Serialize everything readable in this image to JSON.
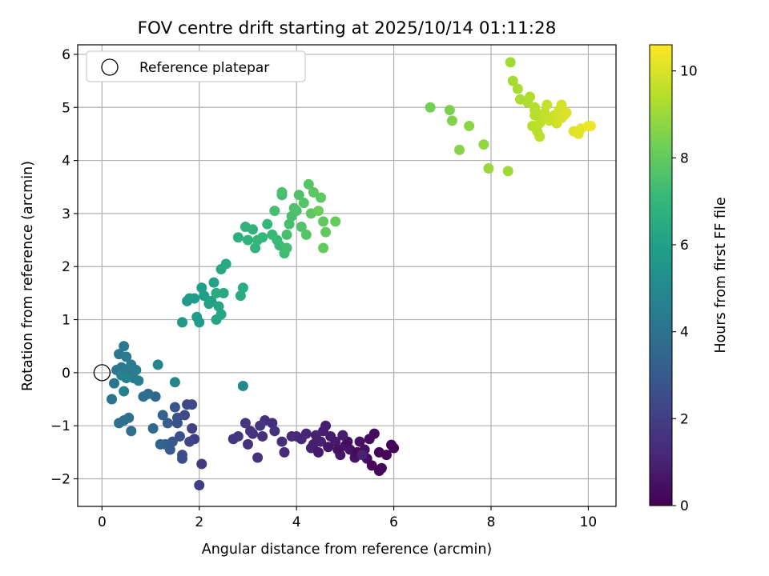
{
  "chart_data": {
    "type": "scatter",
    "title": "FOV centre drift starting at 2025/10/14 01:11:28",
    "xlabel": "Angular distance from reference (arcmin)",
    "ylabel": "Rotation from reference (arcmin)",
    "xlim": [
      -0.5,
      10.57
    ],
    "ylim": [
      -2.52,
      6.18
    ],
    "xticks": [
      "0",
      "2",
      "4",
      "6",
      "8",
      "10"
    ],
    "yticks": [
      "−2",
      "−1",
      "0",
      "1",
      "2",
      "3",
      "4",
      "5",
      "6"
    ],
    "grid": true,
    "legend": {
      "position": "top-left",
      "label": "Reference platepar",
      "marker": "open-circle"
    },
    "reference_point": {
      "x": 0,
      "y": 0
    },
    "colorbar": {
      "label": "Hours from first FF file",
      "range": [
        0,
        10.6
      ],
      "ticks": [
        "0",
        "2",
        "4",
        "6",
        "8",
        "10"
      ],
      "colormap": "viridis"
    },
    "colormap_stops": [
      "#440154",
      "#482878",
      "#3e4989",
      "#31688e",
      "#26828e",
      "#1f9e89",
      "#35b779",
      "#6ece58",
      "#b5de2b",
      "#fde725"
    ],
    "points": [
      [
        6.0,
        -1.42,
        0.05
      ],
      [
        5.95,
        -1.36,
        0.1
      ],
      [
        5.85,
        -1.55,
        0.15
      ],
      [
        5.75,
        -1.8,
        0.2
      ],
      [
        5.7,
        -1.85,
        0.25
      ],
      [
        5.6,
        -1.15,
        0.3
      ],
      [
        5.5,
        -1.25,
        0.35
      ],
      [
        5.45,
        -1.62,
        0.4
      ],
      [
        5.4,
        -1.45,
        0.45
      ],
      [
        5.3,
        -1.3,
        0.5
      ],
      [
        5.2,
        -1.6,
        0.55
      ],
      [
        5.1,
        -1.45,
        0.6
      ],
      [
        5.0,
        -1.38,
        0.65
      ],
      [
        4.9,
        -1.55,
        0.7
      ],
      [
        4.8,
        -1.3,
        0.75
      ],
      [
        4.7,
        -1.2,
        0.8
      ],
      [
        4.6,
        -1.0,
        0.85
      ],
      [
        4.55,
        -1.1,
        0.9
      ],
      [
        4.5,
        -1.3,
        0.95
      ],
      [
        4.4,
        -1.18,
        1.0
      ],
      [
        4.3,
        -1.42,
        1.05
      ],
      [
        4.2,
        -1.15,
        1.1
      ],
      [
        4.1,
        -1.25,
        1.15
      ],
      [
        4.0,
        -1.2,
        1.2
      ],
      [
        3.9,
        -1.2,
        1.25
      ],
      [
        3.75,
        -1.5,
        1.3
      ],
      [
        3.7,
        -1.3,
        1.35
      ],
      [
        3.5,
        -0.95,
        1.4
      ],
      [
        3.3,
        -1.2,
        1.45
      ],
      [
        3.2,
        -1.6,
        1.5
      ],
      [
        3.1,
        -1.15,
        1.55
      ],
      [
        3.0,
        -1.35,
        1.6
      ],
      [
        2.95,
        -0.95,
        1.65
      ],
      [
        2.8,
        -1.2,
        1.7
      ],
      [
        2.7,
        -1.25,
        1.75
      ],
      [
        5.7,
        -1.5,
        0.12
      ],
      [
        5.55,
        -1.75,
        0.22
      ],
      [
        5.25,
        -1.5,
        0.32
      ],
      [
        5.05,
        -1.3,
        0.42
      ],
      [
        4.85,
        -1.45,
        0.52
      ],
      [
        4.65,
        -1.4,
        0.62
      ],
      [
        4.45,
        -1.5,
        0.72
      ],
      [
        4.95,
        -1.18,
        0.82
      ],
      [
        4.35,
        -1.35,
        0.92
      ],
      [
        5.35,
        -1.55,
        1.02
      ],
      [
        3.35,
        -0.9,
        1.5
      ],
      [
        3.55,
        -1.1,
        1.58
      ],
      [
        3.05,
        -1.1,
        1.62
      ],
      [
        3.25,
        -1.0,
        1.68
      ],
      [
        2.05,
        -1.72,
        1.8
      ],
      [
        2.0,
        -2.12,
        1.9
      ],
      [
        1.9,
        -1.25,
        2.0
      ],
      [
        1.85,
        -1.05,
        2.1
      ],
      [
        1.8,
        -1.3,
        2.2
      ],
      [
        1.75,
        -0.6,
        2.3
      ],
      [
        1.7,
        -0.8,
        2.4
      ],
      [
        1.65,
        -1.55,
        2.5
      ],
      [
        1.6,
        -1.2,
        2.6
      ],
      [
        1.55,
        -0.85,
        2.7
      ],
      [
        1.5,
        -0.65,
        2.8
      ],
      [
        1.45,
        -1.3,
        2.9
      ],
      [
        1.4,
        -1.45,
        3.0
      ],
      [
        1.35,
        -0.95,
        3.1
      ],
      [
        1.3,
        -1.35,
        3.2
      ],
      [
        1.25,
        -0.8,
        3.3
      ],
      [
        1.2,
        -1.35,
        3.4
      ],
      [
        1.1,
        -0.45,
        3.5
      ],
      [
        1.05,
        -1.05,
        3.6
      ],
      [
        0.95,
        -0.4,
        3.7
      ],
      [
        0.85,
        -0.45,
        3.8
      ],
      [
        1.65,
        -1.62,
        2.55
      ],
      [
        1.85,
        -0.6,
        2.35
      ],
      [
        1.55,
        -0.95,
        2.65
      ],
      [
        0.6,
        -1.1,
        3.8
      ],
      [
        0.55,
        -0.85,
        3.85
      ],
      [
        0.45,
        -0.9,
        3.9
      ],
      [
        0.35,
        -0.95,
        3.95
      ],
      [
        0.2,
        -0.5,
        4.0
      ],
      [
        0.25,
        -0.2,
        4.05
      ],
      [
        0.3,
        0.05,
        4.1
      ],
      [
        0.35,
        0.35,
        4.15
      ],
      [
        0.4,
        0.1,
        4.2
      ],
      [
        0.45,
        0.5,
        4.25
      ],
      [
        0.5,
        0.3,
        4.3
      ],
      [
        0.55,
        0.05,
        4.35
      ],
      [
        0.6,
        0.15,
        4.4
      ],
      [
        0.65,
        -0.1,
        4.45
      ],
      [
        0.7,
        0.05,
        4.5
      ],
      [
        0.75,
        -0.15,
        4.55
      ],
      [
        0.45,
        -0.35,
        4.6
      ],
      [
        0.5,
        -0.1,
        4.65
      ],
      [
        0.4,
        -0.05,
        4.7
      ],
      [
        1.15,
        0.15,
        4.8
      ],
      [
        1.5,
        -0.18,
        4.9
      ],
      [
        2.9,
        -0.25,
        5.0
      ],
      [
        1.65,
        0.95,
        5.6
      ],
      [
        1.75,
        1.35,
        5.65
      ],
      [
        1.8,
        1.4,
        5.7
      ],
      [
        1.9,
        1.4,
        5.75
      ],
      [
        1.95,
        1.05,
        5.8
      ],
      [
        2.0,
        0.95,
        5.85
      ],
      [
        2.05,
        1.6,
        5.9
      ],
      [
        2.1,
        1.45,
        5.95
      ],
      [
        2.2,
        1.3,
        6.0
      ],
      [
        2.25,
        1.35,
        6.05
      ],
      [
        2.3,
        1.7,
        6.1
      ],
      [
        2.35,
        1.0,
        6.15
      ],
      [
        2.4,
        1.25,
        6.2
      ],
      [
        2.45,
        1.1,
        6.25
      ],
      [
        2.5,
        1.5,
        6.3
      ],
      [
        2.55,
        2.05,
        6.35
      ],
      [
        2.45,
        1.95,
        6.4
      ],
      [
        2.85,
        1.45,
        6.45
      ],
      [
        2.9,
        1.6,
        6.5
      ],
      [
        2.35,
        1.5,
        6.55
      ],
      [
        2.8,
        2.55,
        6.7
      ],
      [
        2.95,
        2.75,
        6.75
      ],
      [
        3.0,
        2.5,
        6.8
      ],
      [
        3.1,
        2.7,
        6.85
      ],
      [
        3.15,
        2.35,
        6.9
      ],
      [
        3.2,
        2.5,
        6.95
      ],
      [
        3.3,
        2.55,
        7.0
      ],
      [
        3.4,
        2.8,
        7.05
      ],
      [
        3.5,
        2.6,
        7.1
      ],
      [
        3.6,
        2.5,
        7.15
      ],
      [
        3.65,
        2.4,
        7.2
      ],
      [
        3.7,
        3.35,
        7.25
      ],
      [
        3.75,
        2.25,
        7.3
      ],
      [
        3.8,
        2.35,
        7.35
      ],
      [
        3.8,
        2.6,
        7.4
      ],
      [
        3.85,
        2.8,
        7.45
      ],
      [
        3.9,
        2.95,
        7.5
      ],
      [
        4.0,
        3.05,
        7.55
      ],
      [
        4.05,
        3.35,
        7.6
      ],
      [
        4.1,
        2.75,
        7.65
      ],
      [
        4.15,
        3.2,
        7.7
      ],
      [
        4.2,
        2.6,
        7.75
      ],
      [
        4.25,
        3.55,
        7.8
      ],
      [
        4.3,
        3.0,
        7.85
      ],
      [
        4.5,
        3.3,
        7.9
      ],
      [
        4.55,
        2.85,
        7.95
      ],
      [
        4.6,
        2.65,
        8.0
      ],
      [
        4.55,
        2.35,
        8.05
      ],
      [
        4.8,
        2.85,
        8.1
      ],
      [
        4.45,
        3.05,
        8.15
      ],
      [
        3.55,
        3.05,
        7.4
      ],
      [
        3.7,
        3.4,
        7.5
      ],
      [
        3.95,
        3.1,
        7.6
      ],
      [
        4.35,
        3.4,
        7.85
      ],
      [
        6.75,
        5.0,
        8.3
      ],
      [
        7.15,
        4.95,
        8.45
      ],
      [
        7.2,
        4.75,
        8.55
      ],
      [
        7.35,
        4.2,
        8.65
      ],
      [
        7.55,
        4.65,
        8.75
      ],
      [
        7.85,
        4.3,
        8.85
      ],
      [
        7.95,
        3.85,
        8.95
      ],
      [
        8.35,
        3.8,
        9.05
      ],
      [
        8.4,
        5.85,
        9.1
      ],
      [
        8.45,
        5.5,
        9.15
      ],
      [
        8.55,
        5.35,
        9.2
      ],
      [
        8.6,
        5.15,
        9.25
      ],
      [
        8.75,
        5.1,
        9.3
      ],
      [
        8.8,
        5.2,
        9.35
      ],
      [
        8.85,
        4.65,
        9.4
      ],
      [
        8.9,
        4.95,
        9.45
      ],
      [
        8.95,
        4.55,
        9.5
      ],
      [
        9.0,
        4.45,
        9.55
      ],
      [
        9.05,
        4.8,
        9.6
      ],
      [
        9.1,
        4.9,
        9.65
      ],
      [
        9.15,
        5.05,
        9.7
      ],
      [
        9.2,
        4.75,
        9.75
      ],
      [
        9.3,
        4.85,
        9.8
      ],
      [
        9.35,
        4.7,
        9.85
      ],
      [
        9.4,
        4.95,
        9.9
      ],
      [
        9.45,
        4.8,
        9.95
      ],
      [
        9.5,
        4.85,
        10.0
      ],
      [
        9.55,
        4.9,
        10.05
      ],
      [
        9.7,
        4.55,
        10.1
      ],
      [
        9.8,
        4.5,
        10.15
      ],
      [
        9.85,
        4.6,
        10.2
      ],
      [
        10.0,
        4.65,
        10.3
      ],
      [
        10.05,
        4.65,
        10.35
      ],
      [
        9.45,
        5.05,
        9.9
      ],
      [
        8.9,
        4.85,
        9.45
      ],
      [
        9.0,
        4.7,
        9.55
      ],
      [
        8.9,
        5.0,
        9.4
      ]
    ]
  }
}
